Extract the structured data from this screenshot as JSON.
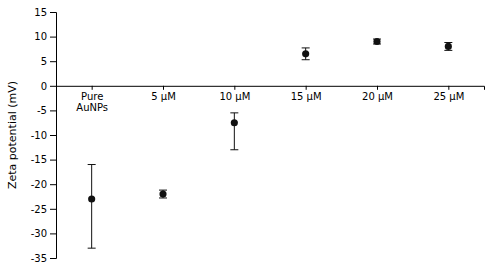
{
  "chart_data": {
    "type": "scatter",
    "categories": [
      "Pure\nAuNPs",
      "5 μM",
      "10 μM",
      "15 μM",
      "20 μM",
      "25 μM"
    ],
    "values": [
      -23.0,
      -22.0,
      -7.5,
      6.5,
      9.0,
      8.0
    ],
    "error_upper": [
      7.0,
      0.8,
      2.0,
      1.2,
      0.5,
      0.8
    ],
    "error_lower": [
      10.0,
      0.8,
      5.5,
      1.2,
      0.5,
      0.8
    ],
    "ylabel": "Zeta potential (mV)",
    "ylim": [
      -35,
      15
    ],
    "yticks": [
      -35,
      -30,
      -25,
      -20,
      -15,
      -10,
      -5,
      0,
      5,
      10,
      15
    ],
    "color": "#111111",
    "marker": "circle"
  }
}
